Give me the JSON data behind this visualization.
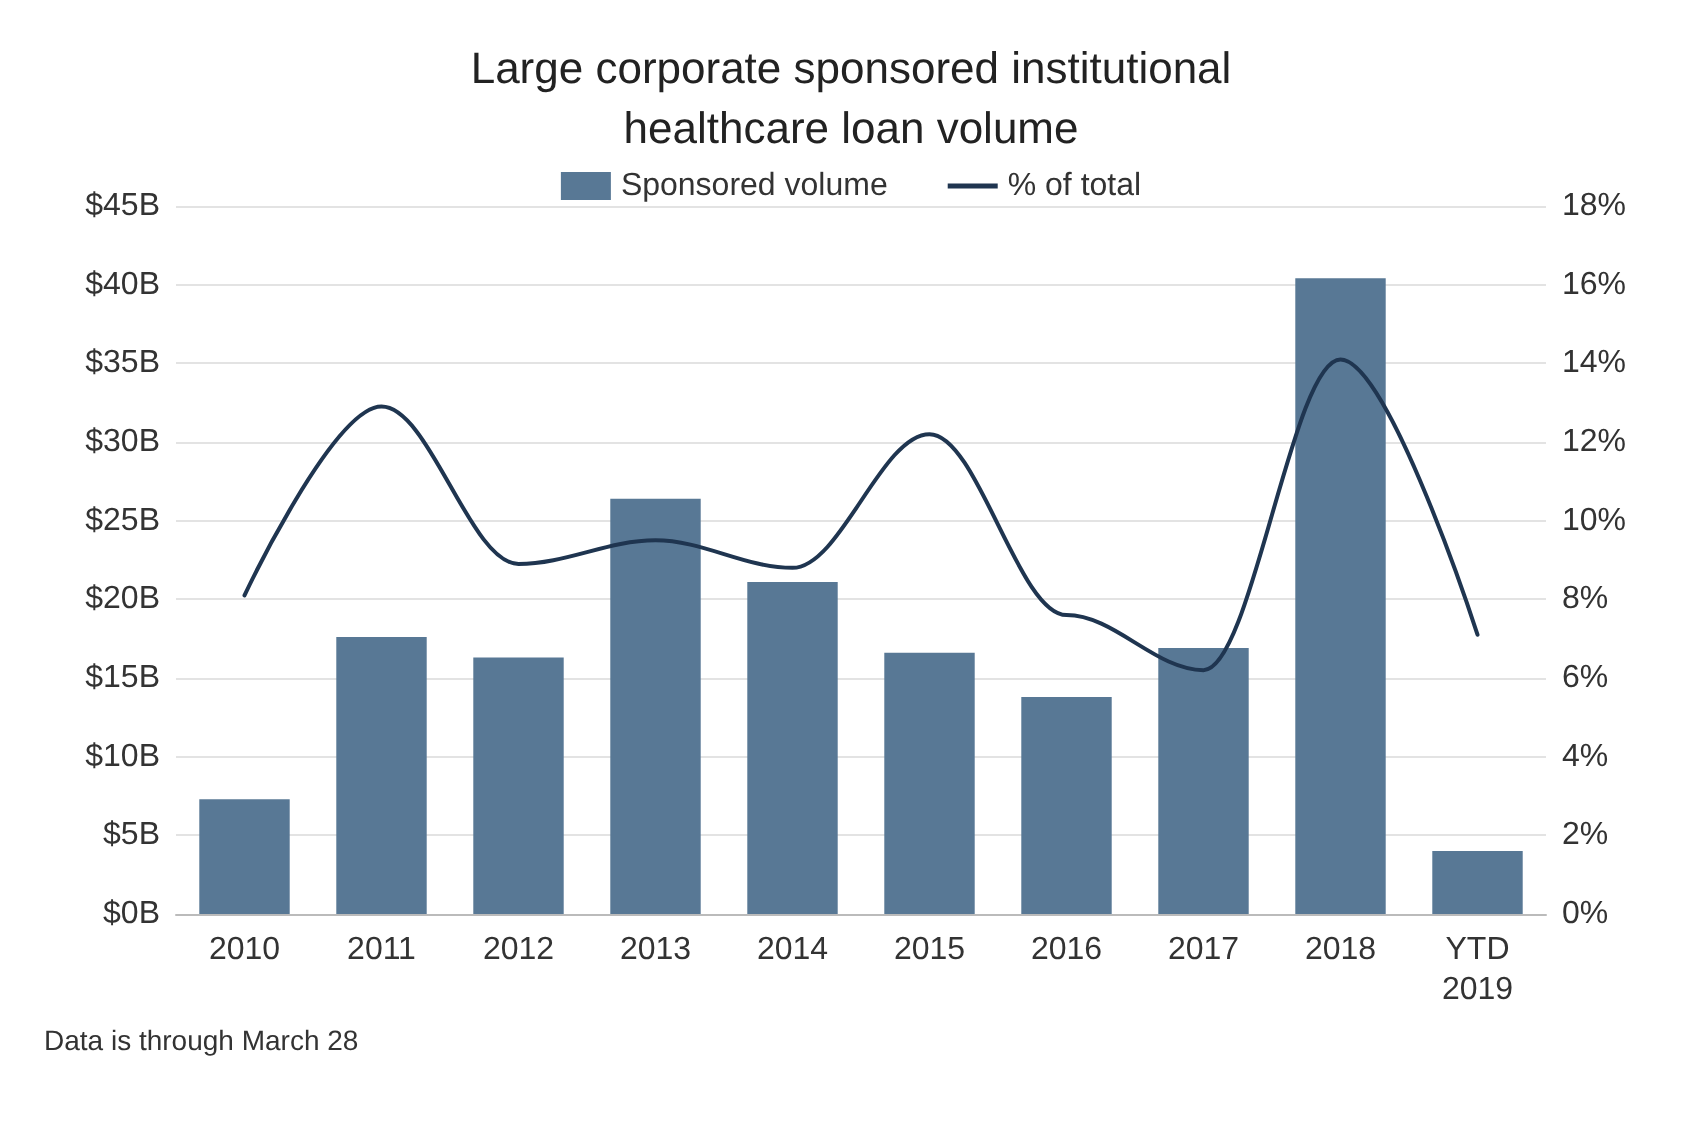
{
  "chart_data": {
    "type": "bar",
    "title": "Large corporate sponsored institutional\nhealthcare loan volume",
    "categories": [
      "2010",
      "2011",
      "2012",
      "2013",
      "2014",
      "2015",
      "2016",
      "2017",
      "2018",
      "YTD\n2019"
    ],
    "series": [
      {
        "name": "Sponsored volume",
        "color": "#587895",
        "values": [
          7.3,
          17.6,
          16.3,
          26.4,
          21.1,
          16.6,
          13.8,
          16.9,
          40.4,
          4.0
        ]
      },
      {
        "name": "% of total",
        "type": "line",
        "axis": "y2",
        "color": "#1f3550",
        "values": [
          8.1,
          12.9,
          8.9,
          9.5,
          8.8,
          12.2,
          7.6,
          6.2,
          14.1,
          7.1
        ]
      }
    ],
    "ylim": [
      0,
      45
    ],
    "yticks": [
      {
        "value": 0,
        "label": "$0B"
      },
      {
        "value": 5,
        "label": "$5B"
      },
      {
        "value": 10,
        "label": "$10B"
      },
      {
        "value": 15,
        "label": "$15B"
      },
      {
        "value": 20,
        "label": "$20B"
      },
      {
        "value": 25,
        "label": "$25B"
      },
      {
        "value": 30,
        "label": "$30B"
      },
      {
        "value": 35,
        "label": "$35B"
      },
      {
        "value": 40,
        "label": "$40B"
      },
      {
        "value": 45,
        "label": "$45B"
      }
    ],
    "y2lim": [
      0,
      18
    ],
    "y2ticks": [
      {
        "value": 0,
        "label": "0%"
      },
      {
        "value": 2,
        "label": "2%"
      },
      {
        "value": 4,
        "label": "4%"
      },
      {
        "value": 6,
        "label": "6%"
      },
      {
        "value": 8,
        "label": "8%"
      },
      {
        "value": 10,
        "label": "10%"
      },
      {
        "value": 12,
        "label": "12%"
      },
      {
        "value": 14,
        "label": "14%"
      },
      {
        "value": 16,
        "label": "16%"
      },
      {
        "value": 18,
        "label": "18%"
      }
    ],
    "grid": "y",
    "legend": "top",
    "marker": "none",
    "annotations": [
      "Data is through March 28"
    ]
  }
}
